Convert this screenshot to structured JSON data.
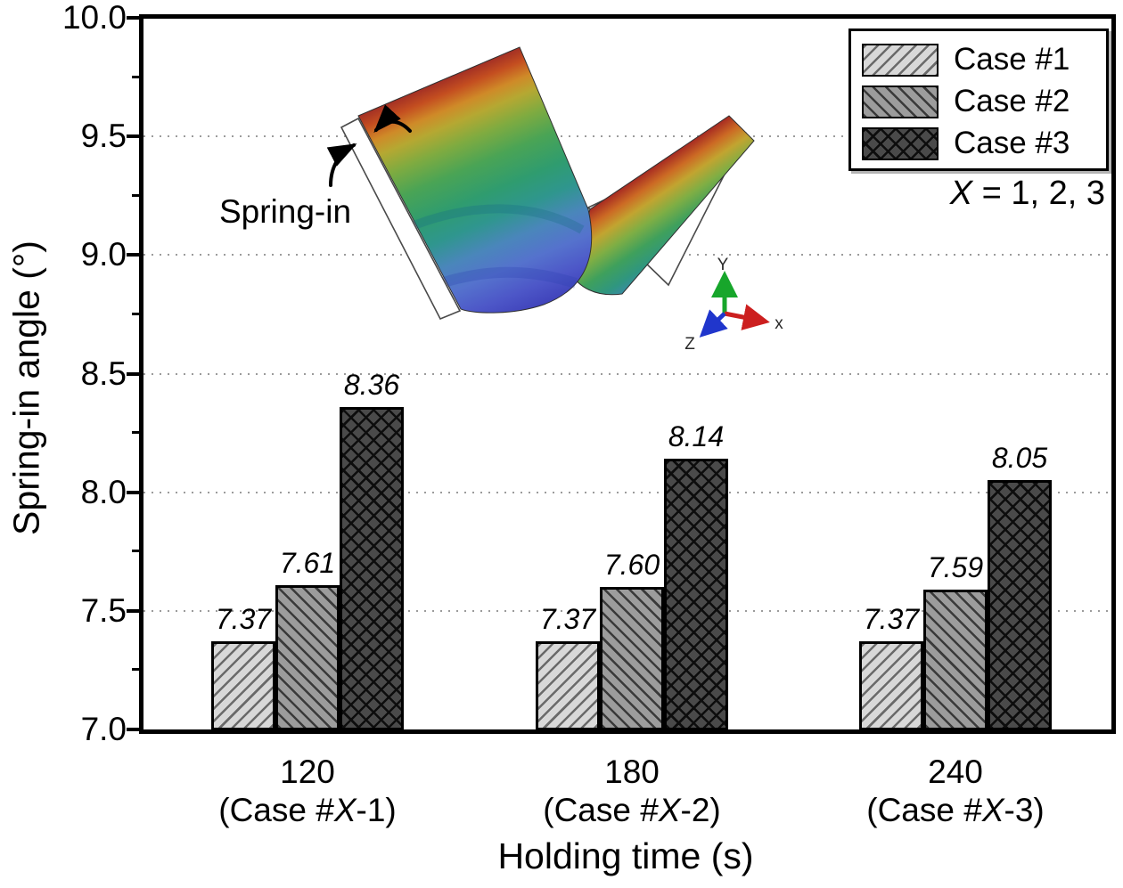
{
  "figure": {
    "background": "#ffffff",
    "inset": {
      "annotation": "Spring-in",
      "triad": {
        "x_label": "x",
        "y_label": "Y",
        "z_label": "Z",
        "x_color": "#cc1f1f",
        "y_color": "#17a62b",
        "z_color": "#2036cc"
      }
    }
  },
  "chart_data": {
    "type": "bar",
    "title": "",
    "xlabel": "Holding time (s)",
    "ylabel": "Spring-in angle (°)",
    "ylim": [
      7.0,
      10.0
    ],
    "ytick_step": 0.5,
    "yminor_step": 0.25,
    "ytick_labels": [
      "10.0",
      "9.5",
      "9.0",
      "8.5",
      "8.0",
      "7.5",
      "7.0"
    ],
    "grid": "dotted-horizontal-major",
    "legend_position": "top-right",
    "legend_note": "X = 1, 2, 3",
    "categories": [
      {
        "label": "120",
        "sub": "(Case #X-1)"
      },
      {
        "label": "180",
        "sub": "(Case #X-2)"
      },
      {
        "label": "240",
        "sub": "(Case #X-3)"
      }
    ],
    "series": [
      {
        "name": "Case #1",
        "hatch": "diagonal-up",
        "fill": "#d8d8d8",
        "hatch_color": "#6a6a6a",
        "values": [
          7.37,
          7.37,
          7.37
        ]
      },
      {
        "name": "Case #2",
        "hatch": "diagonal-down",
        "fill": "#9c9c9c",
        "hatch_color": "#3a3a3a",
        "values": [
          7.61,
          7.6,
          7.59
        ]
      },
      {
        "name": "Case #3",
        "hatch": "crosshatch",
        "fill": "#4a4a4a",
        "hatch_color": "#0d0d0d",
        "values": [
          8.36,
          8.14,
          8.05
        ]
      }
    ]
  }
}
